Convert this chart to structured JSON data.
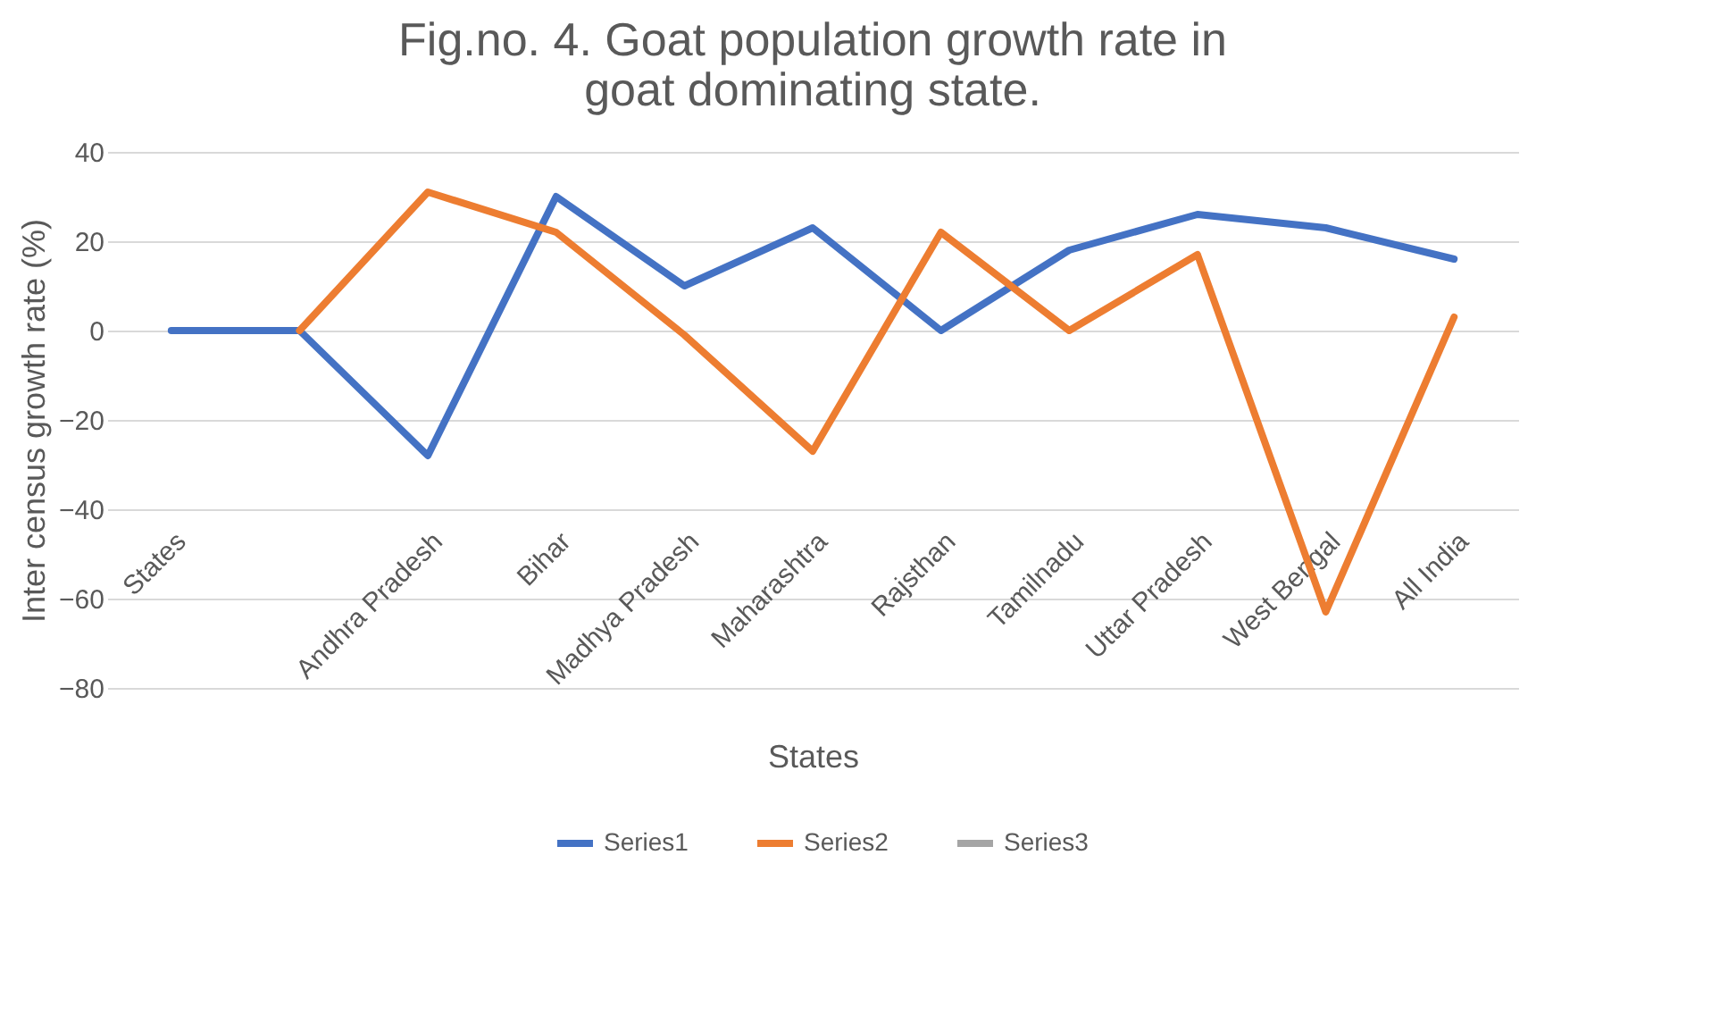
{
  "chart_data": {
    "type": "line",
    "title": "Fig.no. 4. Goat population growth rate in goat dominating state.",
    "xlabel": "States",
    "ylabel": "Inter census growth rate (%)",
    "categories": [
      "States",
      null,
      "Andhra Pradesh",
      "Bihar",
      "Madhya Pradesh",
      "Maharashtra",
      "Rajsthan",
      "Tamilnadu",
      "Uttar Pradesh",
      "West Bengal",
      "All India"
    ],
    "series": [
      {
        "name": "Series1",
        "color": "#4472c4",
        "values": [
          0,
          0,
          -28,
          30,
          10,
          23,
          0,
          18,
          26,
          23,
          16
        ]
      },
      {
        "name": "Series2",
        "color": "#ed7d31",
        "values": [
          null,
          0,
          31,
          22,
          -1,
          -27,
          22,
          0,
          17,
          -63,
          3
        ]
      },
      {
        "name": "Series3",
        "color": "#a5a5a5",
        "values": [
          null,
          null,
          null,
          null,
          null,
          null,
          null,
          null,
          null,
          null,
          null
        ]
      }
    ],
    "ylim": [
      -80,
      40
    ],
    "yticks": [
      -80,
      -60,
      -40,
      -20,
      0,
      20,
      40
    ],
    "grid": "y",
    "legend": "bottom"
  }
}
